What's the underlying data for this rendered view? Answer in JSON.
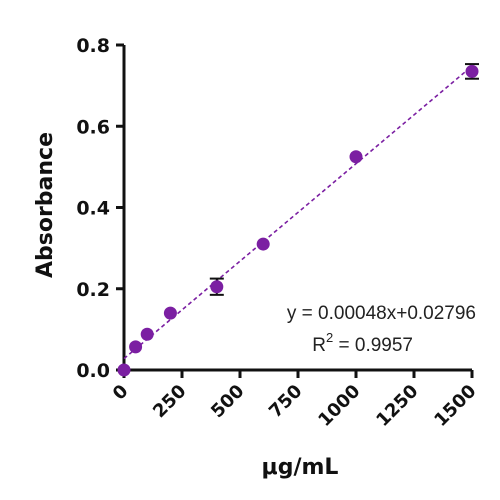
{
  "chart_data": {
    "type": "scatter",
    "xlabel": "μg/mL",
    "ylabel": "Absorbance",
    "xlim": [
      0,
      1500
    ],
    "ylim": [
      0,
      0.8
    ],
    "x_ticks": [
      "0",
      "250",
      "500",
      "750",
      "1000",
      "1250",
      "1500"
    ],
    "y_ticks": [
      "0.0",
      "0.2",
      "0.4",
      "0.6",
      "0.8"
    ],
    "grid": false,
    "point_color": "#7B1FA2",
    "fit_line": {
      "slope": 0.00048,
      "intercept": 0.02796,
      "style": "dashed",
      "color": "#7B1FA2"
    },
    "points": [
      {
        "x": 0,
        "y": 0.0,
        "err": 0.0
      },
      {
        "x": 50,
        "y": 0.057,
        "err": 0.0
      },
      {
        "x": 100,
        "y": 0.088,
        "err": 0.0
      },
      {
        "x": 200,
        "y": 0.14,
        "err": 0.0
      },
      {
        "x": 400,
        "y": 0.205,
        "err": 0.02
      },
      {
        "x": 600,
        "y": 0.31,
        "err": 0.0
      },
      {
        "x": 1000,
        "y": 0.525,
        "err": 0.0
      },
      {
        "x": 1500,
        "y": 0.735,
        "err": 0.018
      }
    ],
    "annotations": {
      "equation": "y = 0.00048x+0.02796",
      "r2_prefix": "R",
      "r2_sup": "2",
      "r2_value": " = 0.9957"
    }
  }
}
